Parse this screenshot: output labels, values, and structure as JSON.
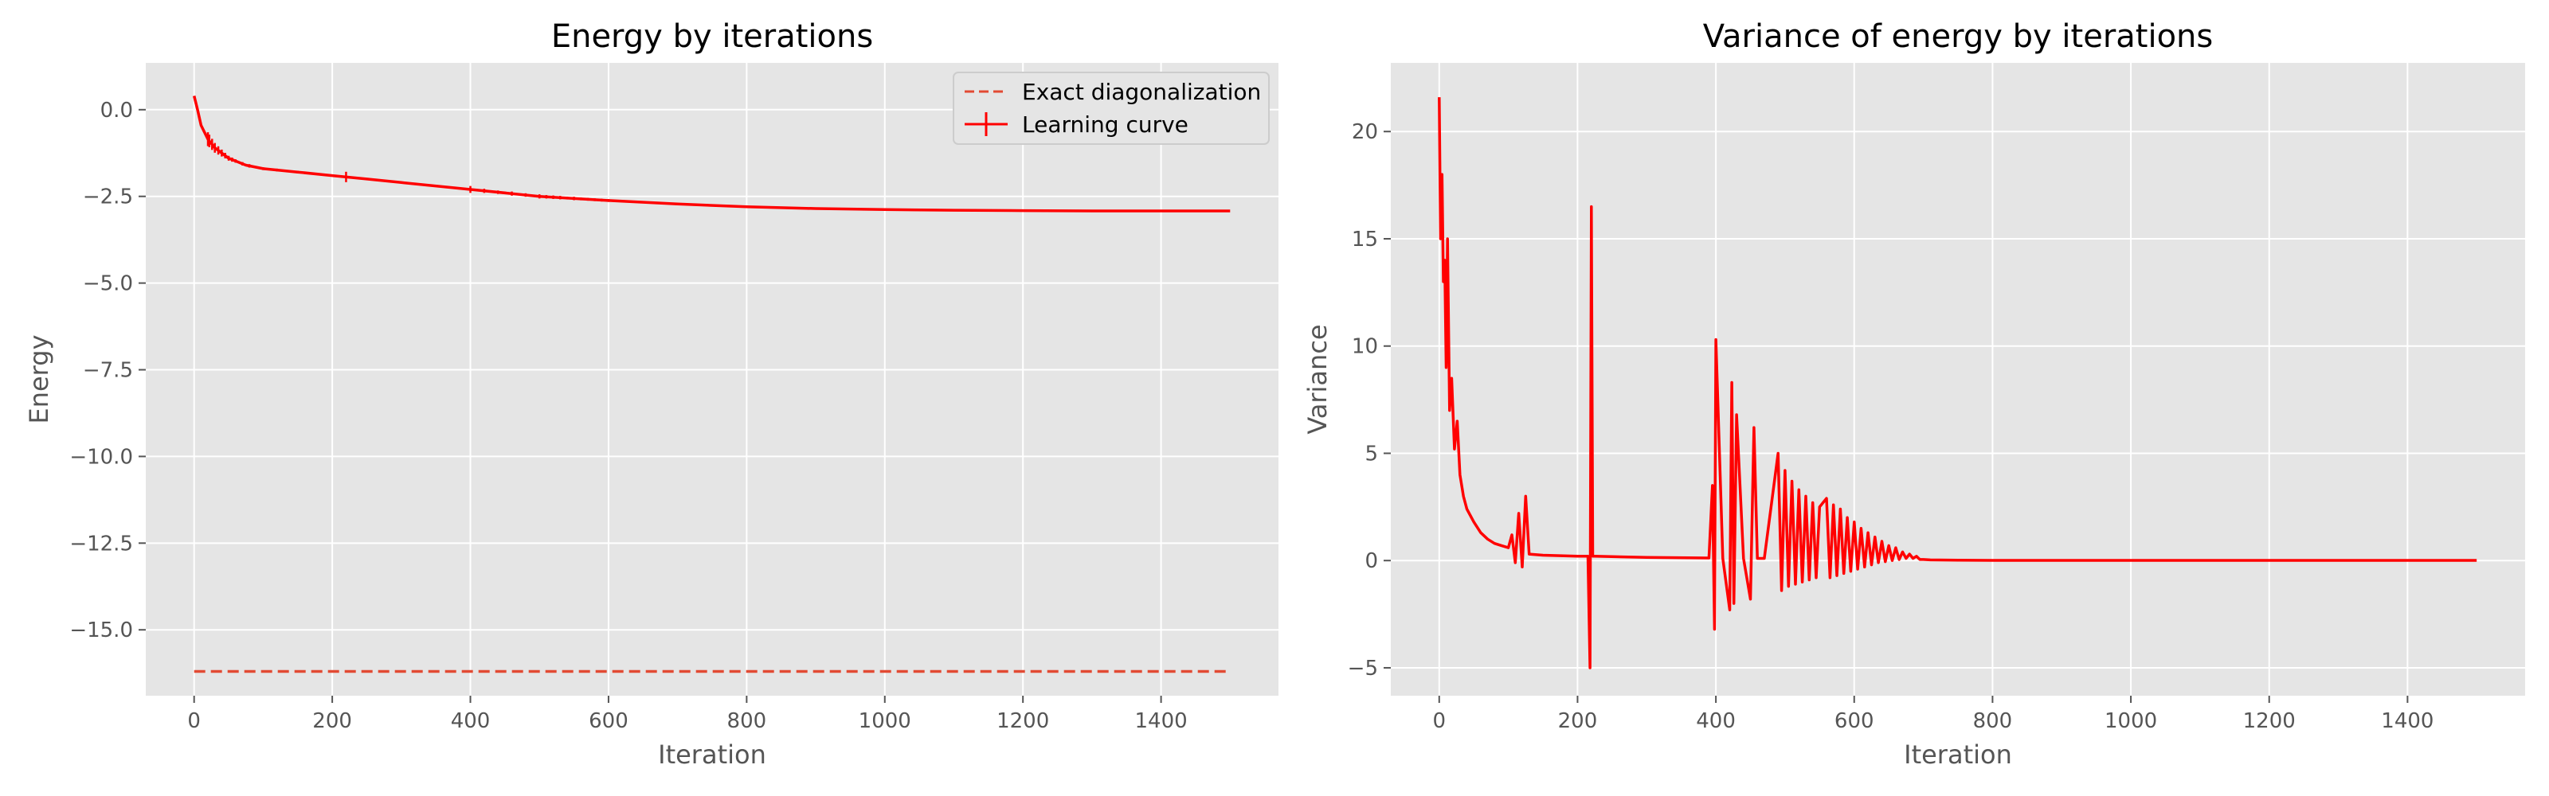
{
  "chart_data": [
    {
      "type": "line",
      "title": "Energy by iterations",
      "xlabel": "Iteration",
      "ylabel": "Energy",
      "xlim": [
        -70,
        1570
      ],
      "ylim": [
        -16.9,
        1.35
      ],
      "xticks": [
        0,
        200,
        400,
        600,
        800,
        1000,
        1200,
        1400
      ],
      "xtick_labels": [
        "0",
        "200",
        "400",
        "600",
        "800",
        "1000",
        "1200",
        "1400"
      ],
      "yticks": [
        0.0,
        -2.5,
        -5.0,
        -7.5,
        -10.0,
        -12.5,
        -15.0
      ],
      "ytick_labels": [
        "0.0",
        "−2.5",
        "−5.0",
        "−7.5",
        "−10.0",
        "−12.5",
        "−15.0"
      ],
      "grid": true,
      "legend": "top-right",
      "legend_entries": [
        "Exact diagonalization",
        "Learning curve"
      ],
      "series": [
        {
          "name": "Exact diagonalization",
          "style": "dashed",
          "color": "#e24a33",
          "x": [
            0,
            1500
          ],
          "y": [
            -16.2,
            -16.2
          ]
        },
        {
          "name": "Learning curve",
          "style": "solid",
          "error_bars": true,
          "color": "#ff0000",
          "x": [
            0,
            5,
            10,
            20,
            30,
            50,
            75,
            100,
            150,
            200,
            250,
            300,
            400,
            500,
            600,
            700,
            800,
            900,
            1000,
            1100,
            1200,
            1300,
            1400,
            1500
          ],
          "y": [
            0.4,
            0.0,
            -0.45,
            -0.85,
            -1.1,
            -1.4,
            -1.6,
            -1.7,
            -1.8,
            -1.9,
            -2.0,
            -2.1,
            -2.3,
            -2.5,
            -2.62,
            -2.72,
            -2.8,
            -2.85,
            -2.88,
            -2.9,
            -2.91,
            -2.92,
            -2.92,
            -2.92
          ],
          "error_x": [
            20,
            22,
            26,
            30,
            35,
            40,
            45,
            50,
            55,
            60,
            70,
            80,
            100,
            120,
            150,
            220,
            400,
            420,
            440,
            460,
            480,
            500,
            510,
            520,
            530,
            540,
            550,
            560,
            570,
            580,
            590,
            600,
            610,
            620,
            630,
            640,
            650,
            660
          ],
          "error_y": [
            0.2,
            0.18,
            0.16,
            0.14,
            0.12,
            0.1,
            0.08,
            0.07,
            0.06,
            0.05,
            0.05,
            0.05,
            0.04,
            0.04,
            0.04,
            0.15,
            0.1,
            0.06,
            0.05,
            0.06,
            0.05,
            0.06,
            0.05,
            0.05,
            0.05,
            0.04,
            0.05,
            0.04,
            0.04,
            0.04,
            0.04,
            0.04,
            0.03,
            0.03,
            0.03,
            0.03,
            0.03,
            0.03
          ]
        }
      ]
    },
    {
      "type": "line",
      "title": "Variance of energy by iterations",
      "xlabel": "Iteration",
      "ylabel": "Variance",
      "xlim": [
        -70,
        1570
      ],
      "ylim": [
        -6.3,
        23.2
      ],
      "xticks": [
        0,
        200,
        400,
        600,
        800,
        1000,
        1200,
        1400
      ],
      "xtick_labels": [
        "0",
        "200",
        "400",
        "600",
        "800",
        "1000",
        "1200",
        "1400"
      ],
      "yticks": [
        20,
        15,
        10,
        5,
        0,
        -5
      ],
      "ytick_labels": [
        "20",
        "15",
        "10",
        "5",
        "0",
        "−5"
      ],
      "grid": true,
      "series": [
        {
          "color": "#ff0000",
          "style": "solid",
          "x": [
            0,
            2,
            4,
            6,
            8,
            10,
            12,
            15,
            18,
            22,
            26,
            30,
            35,
            40,
            50,
            60,
            70,
            80,
            90,
            100,
            105,
            110,
            115,
            120,
            125,
            130,
            150,
            200,
            215,
            218,
            220,
            222,
            225,
            300,
            390,
            395,
            398,
            400,
            410,
            420,
            423,
            426,
            430,
            440,
            450,
            455,
            460,
            470,
            490,
            495,
            500,
            505,
            510,
            515,
            520,
            525,
            530,
            535,
            540,
            545,
            550,
            560,
            565,
            570,
            575,
            580,
            585,
            590,
            595,
            600,
            605,
            610,
            615,
            620,
            625,
            630,
            635,
            640,
            645,
            650,
            655,
            660,
            665,
            670,
            675,
            680,
            685,
            690,
            695,
            700,
            710,
            750,
            800,
            900,
            1000,
            1100,
            1200,
            1300,
            1400,
            1500
          ],
          "y": [
            21.6,
            15.0,
            18.0,
            13.0,
            14.0,
            9.0,
            15.0,
            7.0,
            8.5,
            5.2,
            6.5,
            4.0,
            3.0,
            2.4,
            1.8,
            1.3,
            1.0,
            0.8,
            0.7,
            0.6,
            1.2,
            -0.1,
            2.2,
            -0.3,
            3.0,
            0.3,
            0.25,
            0.2,
            0.2,
            -5.0,
            16.5,
            0.2,
            0.2,
            0.15,
            0.12,
            3.5,
            -3.2,
            10.3,
            0.1,
            -2.3,
            8.3,
            -2.0,
            6.8,
            0.1,
            -1.8,
            6.2,
            0.1,
            0.1,
            5.0,
            -1.4,
            4.2,
            -1.2,
            3.7,
            -1.1,
            3.3,
            -1.0,
            3.0,
            -0.9,
            2.7,
            -0.8,
            2.5,
            2.9,
            -0.8,
            2.6,
            -0.7,
            2.4,
            -0.6,
            2.0,
            -0.5,
            1.8,
            -0.4,
            1.5,
            -0.3,
            1.3,
            -0.2,
            1.1,
            -0.1,
            0.9,
            -0.05,
            0.7,
            0.0,
            0.6,
            0.05,
            0.4,
            0.1,
            0.3,
            0.1,
            0.2,
            0.05,
            0.05,
            0.03,
            0.02,
            0.01,
            0.01,
            0.01,
            0.01,
            0.01,
            0.01,
            0.01,
            0.01
          ]
        }
      ]
    }
  ]
}
